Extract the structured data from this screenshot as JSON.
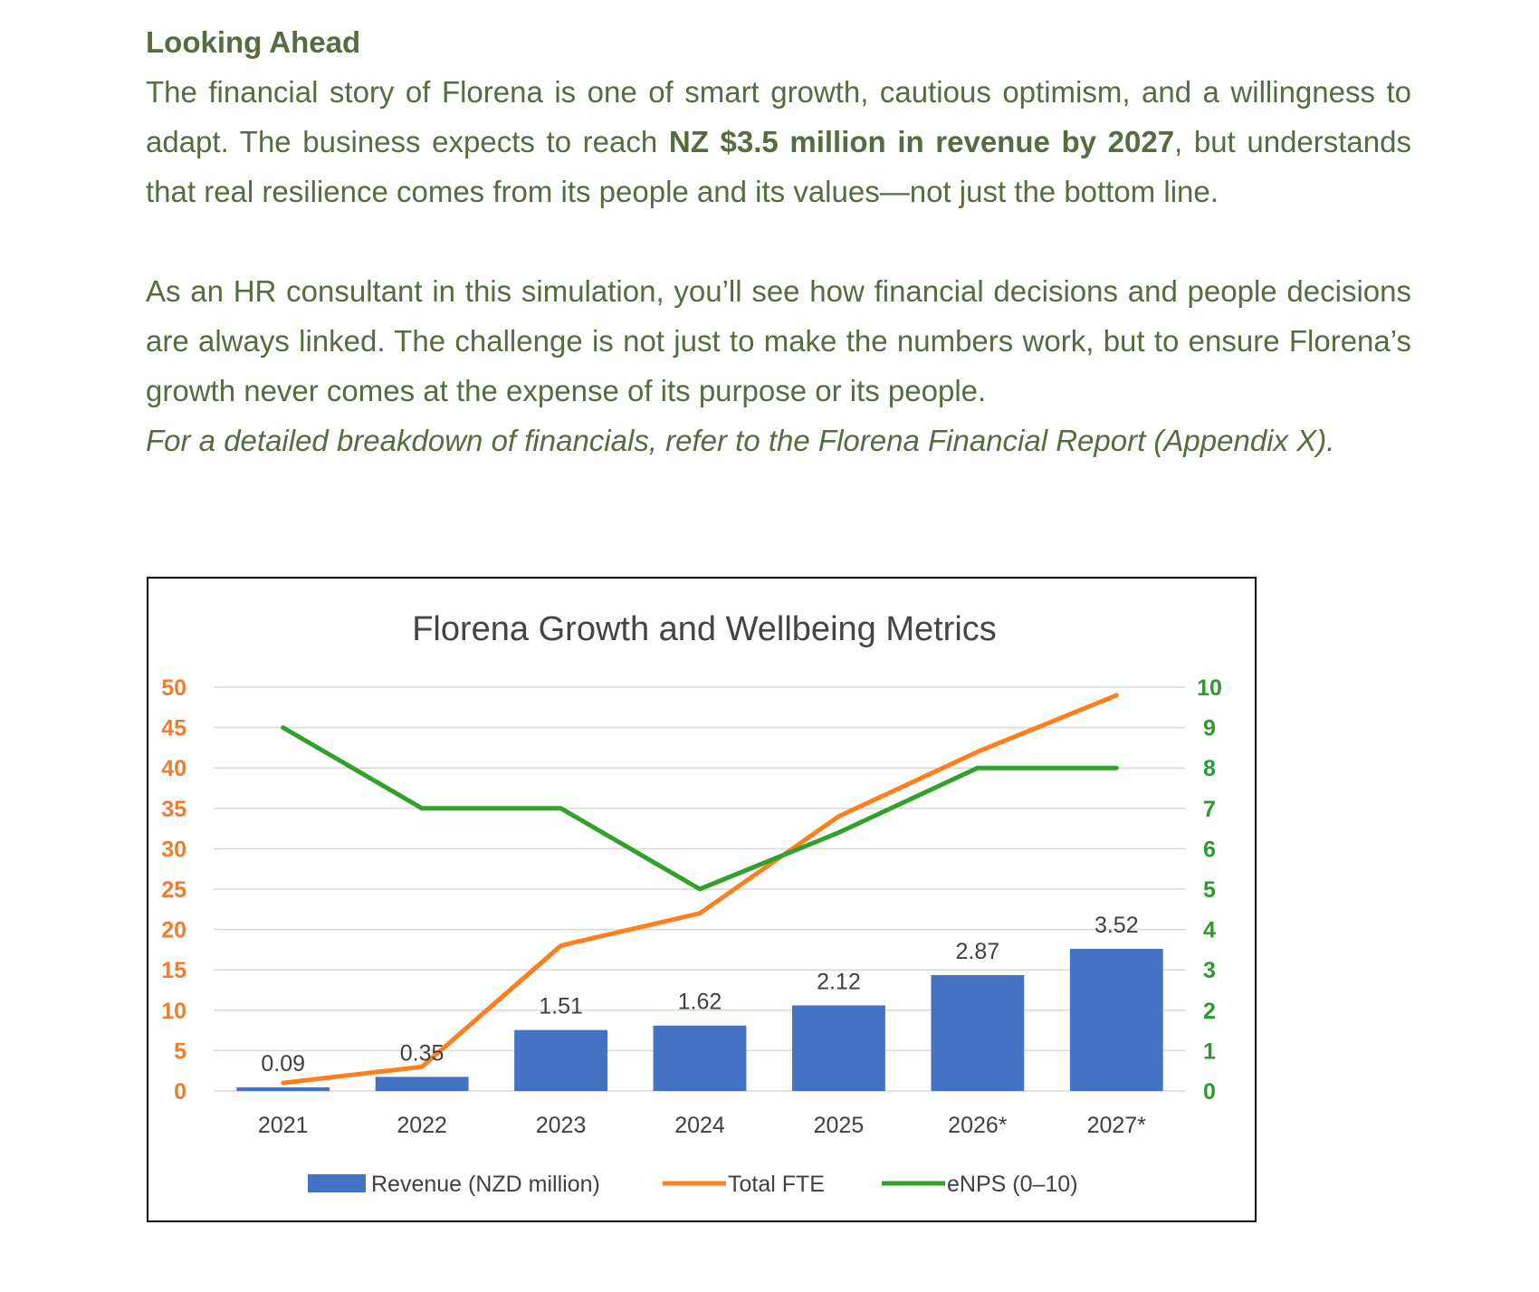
{
  "document": {
    "heading": "Looking Ahead",
    "para1_before": "The financial story of Florena is one of smart growth, cautious optimism, and a willingness to adapt. The business expects to reach ",
    "para1_bold": "NZ $3.5 million in revenue by 2027",
    "para1_after": ", but understands that real resilience comes from its people and its values—not just the bottom line.",
    "para2": "As an HR consultant in this simulation, you’ll see how financial decisions and people decisions are always linked. The challenge is not just to make the numbers work, but to ensure Florena’s growth never comes at the expense of its purpose or its people.",
    "note": "For a detailed breakdown of financials, refer to the Florena Financial Report (Appendix X)."
  },
  "chart_data": {
    "type": "bar",
    "title": "Florena Growth and Wellbeing Metrics",
    "categories": [
      "2021",
      "2022",
      "2023",
      "2024",
      "2025",
      "2026*",
      "2027*"
    ],
    "left_axis": {
      "ylim": [
        0,
        50
      ],
      "ticks": [
        "0",
        "5",
        "10",
        "15",
        "20",
        "25",
        "30",
        "35",
        "40",
        "45",
        "50"
      ],
      "color": "#ed7d31"
    },
    "right_axis": {
      "ylim": [
        0,
        10
      ],
      "ticks": [
        "0",
        "1",
        "2",
        "3",
        "4",
        "5",
        "6",
        "7",
        "8",
        "9",
        "10"
      ],
      "color": "#2e9a2e"
    },
    "grid": true,
    "legend_position": "bottom",
    "series": [
      {
        "name": "Revenue (NZD million)",
        "type": "bar",
        "axis": "right",
        "color": "#4472c4",
        "values": [
          0.09,
          0.35,
          1.51,
          1.62,
          2.12,
          2.87,
          3.52
        ],
        "labels": [
          "0.09",
          "0.35",
          "1.51",
          "1.62",
          "2.12",
          "2.87",
          "3.52"
        ]
      },
      {
        "name": "Total FTE",
        "type": "line",
        "axis": "left",
        "color": "#ff7f1e",
        "values": [
          1,
          3,
          18,
          22,
          34,
          42,
          49
        ]
      },
      {
        "name": "eNPS (0–10)",
        "type": "line",
        "axis": "right",
        "color": "#33a02c",
        "values": [
          9,
          7,
          7,
          5,
          6.4,
          8,
          8
        ]
      }
    ]
  }
}
